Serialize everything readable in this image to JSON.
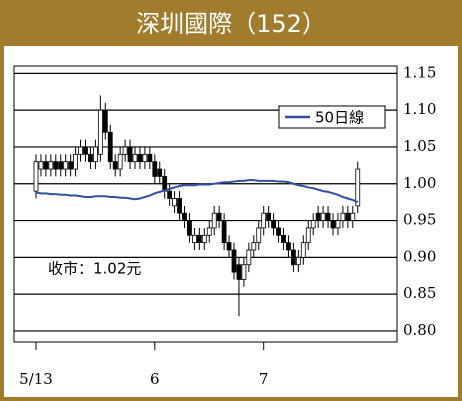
{
  "chart_data": {
    "type": "candlestick",
    "title": "深圳國際（152）",
    "annotation": "收市：1.02元",
    "categories": [
      "5/13",
      null,
      null,
      null,
      null,
      null,
      null,
      null,
      null,
      null,
      null,
      null,
      null,
      null,
      null,
      null,
      null,
      null,
      null,
      null,
      null,
      null,
      null,
      null,
      "6",
      null,
      null,
      null,
      null,
      null,
      null,
      null,
      null,
      null,
      null,
      null,
      null,
      null,
      null,
      null,
      null,
      null,
      null,
      null,
      null,
      null,
      "7",
      null,
      null,
      null,
      null,
      null,
      null,
      null,
      null,
      null,
      null,
      null,
      null,
      null,
      null,
      null,
      null,
      null,
      null,
      null
    ],
    "ohlc": {
      "up_color": "#ffffff",
      "down_color": "#000000",
      "open": [
        0.99,
        1.02,
        1.03,
        1.02,
        1.03,
        1.03,
        1.02,
        1.03,
        1.02,
        1.04,
        1.05,
        1.04,
        1.03,
        1.04,
        1.1,
        1.07,
        1.03,
        1.02,
        1.04,
        1.05,
        1.03,
        1.04,
        1.03,
        1.04,
        1.03,
        1.02,
        1.01,
        0.99,
        0.97,
        0.98,
        0.96,
        0.95,
        0.92,
        0.93,
        0.92,
        0.93,
        0.94,
        0.96,
        0.95,
        0.92,
        0.91,
        0.89,
        0.87,
        0.89,
        0.91,
        0.92,
        0.94,
        0.96,
        0.95,
        0.94,
        0.93,
        0.92,
        0.91,
        0.89,
        0.9,
        0.92,
        0.94,
        0.96,
        0.95,
        0.96,
        0.95,
        0.94,
        0.95,
        0.96,
        0.95,
        0.97
      ],
      "high": [
        1.04,
        1.04,
        1.04,
        1.04,
        1.04,
        1.04,
        1.04,
        1.04,
        1.05,
        1.06,
        1.06,
        1.05,
        1.06,
        1.12,
        1.11,
        1.08,
        1.04,
        1.05,
        1.06,
        1.06,
        1.05,
        1.05,
        1.05,
        1.05,
        1.04,
        1.03,
        1.02,
        1.0,
        0.99,
        0.99,
        0.97,
        0.96,
        0.94,
        0.94,
        0.94,
        0.95,
        0.97,
        0.97,
        0.96,
        0.93,
        0.92,
        0.9,
        0.9,
        0.92,
        0.93,
        0.95,
        0.97,
        0.97,
        0.96,
        0.95,
        0.94,
        0.93,
        0.92,
        0.91,
        0.93,
        0.95,
        0.96,
        0.97,
        0.97,
        0.97,
        0.96,
        0.96,
        0.97,
        0.97,
        0.97,
        1.03
      ],
      "low": [
        0.98,
        1.01,
        1.01,
        1.01,
        1.01,
        1.01,
        1.01,
        1.01,
        1.01,
        1.03,
        1.03,
        1.02,
        1.02,
        1.03,
        1.06,
        1.02,
        1.01,
        1.01,
        1.03,
        1.02,
        1.02,
        1.02,
        1.02,
        1.02,
        1.0,
        1.0,
        0.98,
        0.97,
        0.96,
        0.95,
        0.94,
        0.92,
        0.91,
        0.91,
        0.91,
        0.92,
        0.93,
        0.94,
        0.91,
        0.9,
        0.87,
        0.82,
        0.86,
        0.88,
        0.9,
        0.91,
        0.93,
        0.94,
        0.93,
        0.92,
        0.91,
        0.9,
        0.88,
        0.88,
        0.89,
        0.91,
        0.93,
        0.94,
        0.94,
        0.94,
        0.93,
        0.93,
        0.94,
        0.94,
        0.94,
        0.96
      ],
      "close": [
        1.03,
        1.03,
        1.02,
        1.03,
        1.02,
        1.02,
        1.03,
        1.02,
        1.04,
        1.05,
        1.04,
        1.03,
        1.05,
        1.1,
        1.07,
        1.03,
        1.02,
        1.04,
        1.05,
        1.03,
        1.04,
        1.03,
        1.04,
        1.03,
        1.01,
        1.01,
        0.99,
        0.98,
        0.98,
        0.96,
        0.95,
        0.93,
        0.93,
        0.92,
        0.93,
        0.94,
        0.96,
        0.95,
        0.92,
        0.91,
        0.88,
        0.87,
        0.89,
        0.91,
        0.92,
        0.94,
        0.96,
        0.95,
        0.94,
        0.93,
        0.92,
        0.91,
        0.89,
        0.9,
        0.92,
        0.94,
        0.95,
        0.95,
        0.96,
        0.95,
        0.94,
        0.95,
        0.96,
        0.95,
        0.96,
        1.02
      ]
    },
    "series": [
      {
        "name": "50日線",
        "color": "#33509e",
        "values": [
          0.988,
          0.987,
          0.987,
          0.986,
          0.986,
          0.985,
          0.985,
          0.984,
          0.984,
          0.983,
          0.982,
          0.982,
          0.983,
          0.983,
          0.983,
          0.982,
          0.982,
          0.981,
          0.981,
          0.98,
          0.979,
          0.98,
          0.982,
          0.984,
          0.987,
          0.989,
          0.991,
          0.993,
          0.995,
          0.997,
          0.998,
          0.998,
          0.998,
          0.999,
          0.999,
          0.999,
          1.0,
          1.001,
          1.002,
          1.002,
          1.003,
          1.004,
          1.004,
          1.005,
          1.005,
          1.004,
          1.004,
          1.004,
          1.004,
          1.003,
          1.003,
          1.002,
          1.0,
          0.998,
          0.997,
          0.995,
          0.994,
          0.992,
          0.99,
          0.989,
          0.987,
          0.985,
          0.982,
          0.98,
          0.978,
          0.975
        ]
      }
    ],
    "ylim": [
      0.785,
      1.16
    ],
    "yticks": [
      {
        "value": 0.8,
        "label": "0.80"
      },
      0.85,
      {
        "value": 0.9,
        "label": "0.90"
      },
      0.95,
      {
        "value": 1,
        "label": "1.00"
      },
      1.05,
      {
        "value": 1.1,
        "label": "1.10"
      },
      1.15
    ],
    "grid": true
  }
}
